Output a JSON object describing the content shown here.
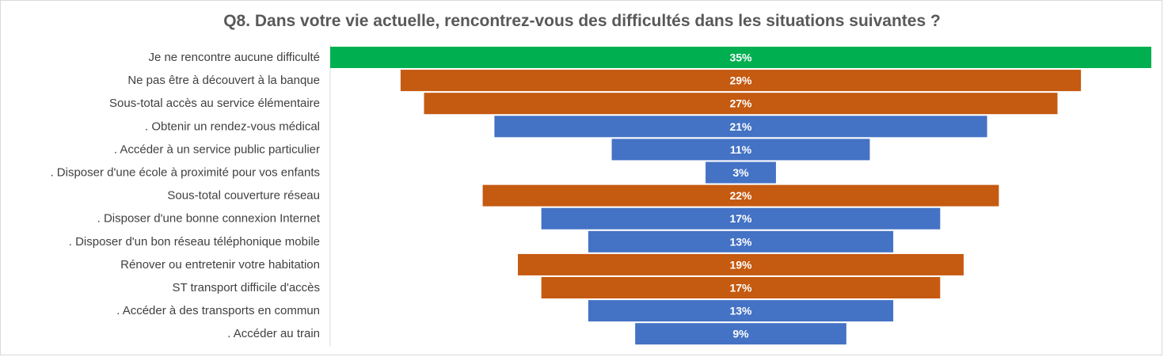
{
  "chart_data": {
    "type": "bar",
    "orientation": "horizontal-funnel",
    "title": "Q8. Dans votre vie actuelle, rencontrez-vous des difficultés dans les situations suivantes ?",
    "xlabel": "",
    "ylabel": "",
    "grid": false,
    "legend": "none",
    "xlim": [
      0,
      35
    ],
    "categories": [
      "Je ne rencontre aucune difficulté",
      "Ne pas être à découvert à la banque",
      "Sous-total accès au service élémentaire",
      ". Obtenir un rendez-vous médical",
      ". Accéder à un service public particulier",
      ". Disposer d'une école à proximité pour vos enfants",
      "Sous-total couverture réseau",
      ". Disposer d'une bonne connexion Internet",
      ". Disposer d'un bon réseau téléphonique mobile",
      "Rénover ou entretenir votre habitation",
      "ST transport difficile d'accès",
      ". Accéder à des transports en commun",
      ". Accéder au train"
    ],
    "values": [
      35,
      29,
      27,
      21,
      11,
      3,
      22,
      17,
      13,
      19,
      17,
      13,
      9
    ],
    "value_labels": [
      "35%",
      "29%",
      "27%",
      "21%",
      "11%",
      "3%",
      "22%",
      "17%",
      "13%",
      "19%",
      "17%",
      "13%",
      "9%"
    ],
    "bar_colors": [
      "#00b050",
      "#c55a11",
      "#c55a11",
      "#4472c4",
      "#4472c4",
      "#4472c4",
      "#c55a11",
      "#4472c4",
      "#4472c4",
      "#c55a11",
      "#c55a11",
      "#4472c4",
      "#4472c4"
    ]
  }
}
